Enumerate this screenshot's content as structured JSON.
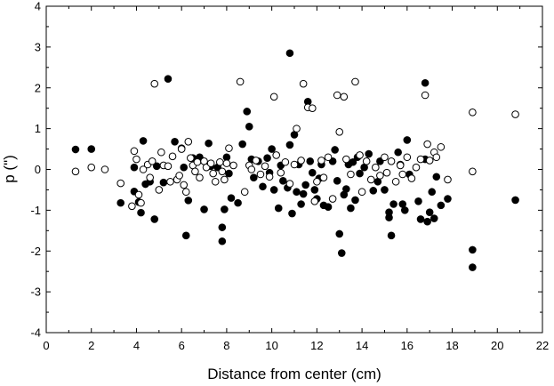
{
  "chart_data": {
    "type": "scatter",
    "title": "",
    "xlabel": "Distance from center (cm)",
    "ylabel": "p (\")",
    "xlim": [
      0,
      22
    ],
    "ylim": [
      -4,
      4
    ],
    "xticks": [
      0,
      2,
      4,
      6,
      8,
      10,
      12,
      14,
      16,
      18,
      20,
      22
    ],
    "yticks": [
      -4,
      -3,
      -2,
      -1,
      0,
      1,
      2,
      3,
      4
    ],
    "grid": false,
    "legend": "none",
    "series": [
      {
        "marker": "filled-circle",
        "color": "#000000",
        "points": [
          [
            1.3,
            0.49
          ],
          [
            2.0,
            0.5
          ],
          [
            3.3,
            -0.82
          ],
          [
            3.9,
            -0.54
          ],
          [
            3.9,
            0.05
          ],
          [
            4.1,
            -0.8
          ],
          [
            4.2,
            -1.06
          ],
          [
            4.3,
            0.7
          ],
          [
            4.4,
            -0.36
          ],
          [
            4.6,
            -0.3
          ],
          [
            4.8,
            -1.22
          ],
          [
            4.9,
            0.08
          ],
          [
            5.2,
            -0.32
          ],
          [
            5.4,
            2.22
          ],
          [
            5.7,
            0.68
          ],
          [
            6.0,
            0.52
          ],
          [
            6.1,
            0.05
          ],
          [
            6.2,
            -1.62
          ],
          [
            6.3,
            -0.76
          ],
          [
            6.5,
            0.28
          ],
          [
            6.8,
            0.3
          ],
          [
            7.0,
            -0.98
          ],
          [
            7.2,
            0.64
          ],
          [
            7.3,
            0.08
          ],
          [
            7.6,
            0.05
          ],
          [
            7.8,
            -1.42
          ],
          [
            7.8,
            -1.76
          ],
          [
            7.9,
            -0.98
          ],
          [
            8.0,
            0.3
          ],
          [
            8.1,
            -0.1
          ],
          [
            8.2,
            -0.7
          ],
          [
            8.5,
            -0.82
          ],
          [
            8.7,
            0.62
          ],
          [
            8.9,
            1.42
          ],
          [
            9.0,
            1.05
          ],
          [
            9.1,
            0.25
          ],
          [
            9.2,
            -0.2
          ],
          [
            9.4,
            0.2
          ],
          [
            9.6,
            -0.42
          ],
          [
            9.8,
            0.28
          ],
          [
            9.9,
            -0.08
          ],
          [
            10.0,
            0.5
          ],
          [
            10.1,
            -0.5
          ],
          [
            10.3,
            -0.95
          ],
          [
            10.4,
            0.1
          ],
          [
            10.5,
            -0.28
          ],
          [
            10.7,
            -0.45
          ],
          [
            10.8,
            2.85
          ],
          [
            10.8,
            0.6
          ],
          [
            10.9,
            -1.08
          ],
          [
            11.0,
            0.85
          ],
          [
            11.1,
            -0.55
          ],
          [
            11.2,
            0.12
          ],
          [
            11.3,
            -0.85
          ],
          [
            11.4,
            -0.6
          ],
          [
            11.5,
            -0.38
          ],
          [
            11.6,
            1.66
          ],
          [
            11.7,
            0.2
          ],
          [
            11.8,
            -0.08
          ],
          [
            11.9,
            -0.5
          ],
          [
            12.0,
            -0.72
          ],
          [
            12.1,
            -0.22
          ],
          [
            12.2,
            0.12
          ],
          [
            12.3,
            -0.88
          ],
          [
            12.5,
            -0.92
          ],
          [
            12.7,
            0.2
          ],
          [
            12.8,
            0.48
          ],
          [
            12.9,
            -0.28
          ],
          [
            13.0,
            -1.58
          ],
          [
            13.1,
            -2.05
          ],
          [
            13.2,
            -0.62
          ],
          [
            13.3,
            -0.48
          ],
          [
            13.4,
            0.12
          ],
          [
            13.5,
            -0.95
          ],
          [
            13.6,
            0.18
          ],
          [
            13.7,
            -0.75
          ],
          [
            13.8,
            0.3
          ],
          [
            13.9,
            -0.1
          ],
          [
            14.1,
            0.05
          ],
          [
            14.3,
            0.38
          ],
          [
            14.5,
            -0.52
          ],
          [
            14.7,
            -0.3
          ],
          [
            14.8,
            0.2
          ],
          [
            15.0,
            -0.5
          ],
          [
            15.2,
            -1.05
          ],
          [
            15.2,
            -1.18
          ],
          [
            15.3,
            -1.62
          ],
          [
            15.4,
            -0.85
          ],
          [
            15.6,
            0.42
          ],
          [
            15.7,
            0.12
          ],
          [
            15.8,
            -0.85
          ],
          [
            15.9,
            -1.0
          ],
          [
            16.0,
            0.72
          ],
          [
            16.1,
            -0.12
          ],
          [
            16.5,
            -0.78
          ],
          [
            16.6,
            -1.22
          ],
          [
            16.8,
            2.12
          ],
          [
            16.8,
            0.25
          ],
          [
            16.9,
            -1.28
          ],
          [
            17.0,
            -1.05
          ],
          [
            17.1,
            -0.55
          ],
          [
            17.2,
            -1.2
          ],
          [
            17.3,
            -0.18
          ],
          [
            17.5,
            -0.88
          ],
          [
            17.8,
            -0.72
          ],
          [
            18.9,
            -1.97
          ],
          [
            18.9,
            -2.4
          ],
          [
            20.8,
            -0.75
          ]
        ]
      },
      {
        "marker": "open-circle",
        "color": "#000000",
        "points": [
          [
            1.3,
            -0.05
          ],
          [
            2.0,
            0.05
          ],
          [
            2.6,
            0.0
          ],
          [
            3.3,
            -0.34
          ],
          [
            3.8,
            -0.9
          ],
          [
            3.9,
            0.45
          ],
          [
            4.0,
            0.25
          ],
          [
            4.1,
            -0.62
          ],
          [
            4.2,
            -0.82
          ],
          [
            4.3,
            0.0
          ],
          [
            4.5,
            0.12
          ],
          [
            4.6,
            -0.2
          ],
          [
            4.7,
            0.2
          ],
          [
            4.8,
            2.1
          ],
          [
            5.0,
            -0.5
          ],
          [
            5.1,
            0.42
          ],
          [
            5.2,
            0.1
          ],
          [
            5.4,
            0.08
          ],
          [
            5.5,
            -0.3
          ],
          [
            5.6,
            0.32
          ],
          [
            5.8,
            -0.25
          ],
          [
            5.9,
            -0.15
          ],
          [
            6.0,
            0.5
          ],
          [
            6.1,
            -0.38
          ],
          [
            6.2,
            -0.55
          ],
          [
            6.3,
            0.68
          ],
          [
            6.4,
            0.28
          ],
          [
            6.5,
            0.1
          ],
          [
            6.6,
            -0.05
          ],
          [
            6.7,
            0.18
          ],
          [
            6.8,
            -0.2
          ],
          [
            7.0,
            0.2
          ],
          [
            7.1,
            0.05
          ],
          [
            7.3,
            0.15
          ],
          [
            7.4,
            -0.1
          ],
          [
            7.5,
            -0.3
          ],
          [
            7.7,
            0.18
          ],
          [
            7.8,
            -0.05
          ],
          [
            7.9,
            -0.25
          ],
          [
            8.0,
            0.15
          ],
          [
            8.1,
            0.52
          ],
          [
            8.3,
            0.1
          ],
          [
            8.6,
            2.15
          ],
          [
            8.8,
            -0.55
          ],
          [
            9.0,
            0.1
          ],
          [
            9.1,
            0.0
          ],
          [
            9.3,
            0.22
          ],
          [
            9.5,
            -0.12
          ],
          [
            9.7,
            0.08
          ],
          [
            9.9,
            -0.18
          ],
          [
            10.1,
            1.78
          ],
          [
            10.2,
            0.35
          ],
          [
            10.4,
            -0.08
          ],
          [
            10.6,
            0.18
          ],
          [
            10.8,
            -0.35
          ],
          [
            11.0,
            0.12
          ],
          [
            11.1,
            1.0
          ],
          [
            11.3,
            0.22
          ],
          [
            11.4,
            2.1
          ],
          [
            11.6,
            1.52
          ],
          [
            11.8,
            1.5
          ],
          [
            11.9,
            -0.78
          ],
          [
            12.0,
            -0.3
          ],
          [
            12.2,
            0.22
          ],
          [
            12.3,
            -0.2
          ],
          [
            12.5,
            0.3
          ],
          [
            12.7,
            -0.72
          ],
          [
            12.9,
            1.82
          ],
          [
            13.0,
            0.92
          ],
          [
            13.2,
            1.78
          ],
          [
            13.3,
            0.25
          ],
          [
            13.5,
            -0.12
          ],
          [
            13.7,
            2.15
          ],
          [
            13.9,
            0.35
          ],
          [
            14.0,
            -0.55
          ],
          [
            14.2,
            0.2
          ],
          [
            14.4,
            -0.25
          ],
          [
            14.6,
            0.05
          ],
          [
            14.8,
            -0.15
          ],
          [
            15.0,
            0.3
          ],
          [
            15.1,
            -0.08
          ],
          [
            15.3,
            0.2
          ],
          [
            15.5,
            -0.3
          ],
          [
            15.7,
            0.1
          ],
          [
            15.8,
            -0.12
          ],
          [
            16.0,
            0.3
          ],
          [
            16.2,
            -0.22
          ],
          [
            16.4,
            0.05
          ],
          [
            16.6,
            0.25
          ],
          [
            16.8,
            1.82
          ],
          [
            16.9,
            0.62
          ],
          [
            17.0,
            0.22
          ],
          [
            17.2,
            0.42
          ],
          [
            17.3,
            0.3
          ],
          [
            17.5,
            0.55
          ],
          [
            17.8,
            -0.25
          ],
          [
            18.9,
            1.4
          ],
          [
            18.9,
            -0.05
          ],
          [
            20.8,
            1.35
          ]
        ]
      }
    ]
  }
}
